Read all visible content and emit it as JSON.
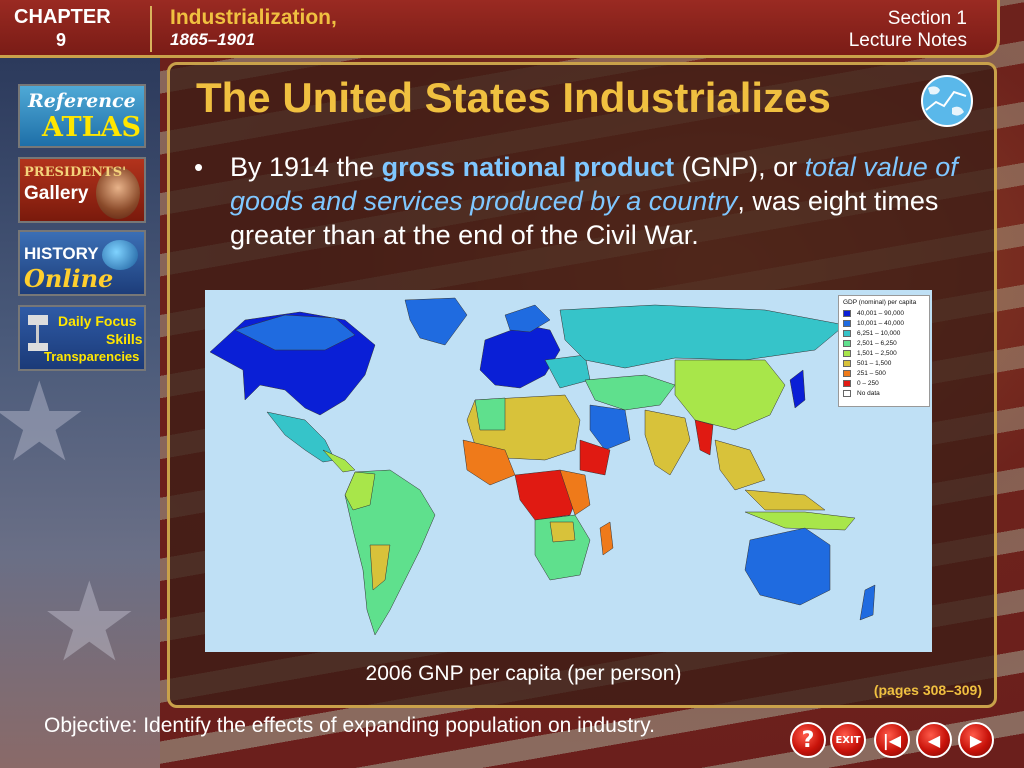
{
  "header": {
    "chapter_label": "CHAPTER",
    "chapter_number": "9",
    "chapter_title": "Industrialization,",
    "chapter_dates": "1865–1901",
    "section_label": "Section 1",
    "section_sub": "Lecture Notes"
  },
  "sidebar": {
    "atlas_line1": "Reference",
    "atlas_line2": "ATLAS",
    "presidents_line1": "PRESIDENTS'",
    "presidents_line2": "Gallery",
    "history_line1": "HISTORY",
    "history_line2": "Online",
    "focus_line1": "Daily Focus",
    "focus_line2": "Skills",
    "focus_line3": "Transparencies"
  },
  "main": {
    "title": "The United States Industrializes",
    "bullet_intro": "By 1914 the ",
    "bullet_term": "gross national product",
    "bullet_mid": " (GNP), or ",
    "bullet_definition": "total value of goods and services produced by a country",
    "bullet_end": ", was eight times greater than at the end of the Civil War.",
    "map_caption": "2006 GNP per capita (per person)",
    "pages_ref": "(pages 308–309)"
  },
  "legend": {
    "title": "GDP (nominal) per capita",
    "entries": [
      {
        "label": "40,001 – 90,000",
        "color": "#0a1fd6"
      },
      {
        "label": "10,001 – 40,000",
        "color": "#1f6be0"
      },
      {
        "label": "6,251 – 10,000",
        "color": "#36c4c9"
      },
      {
        "label": "2,501 – 6,250",
        "color": "#5fe08d"
      },
      {
        "label": "1,501 – 2,500",
        "color": "#a8e64a"
      },
      {
        "label": "501 – 1,500",
        "color": "#d8c23a"
      },
      {
        "label": "251 – 500",
        "color": "#ef7a1a"
      },
      {
        "label": "0 – 250",
        "color": "#e01a12"
      },
      {
        "label": "No data",
        "color": "#ffffff"
      }
    ]
  },
  "footer": {
    "objective": "Objective: Identify the effects of expanding population on industry."
  },
  "nav": {
    "help": "?",
    "exit": "EXIT",
    "first": "|◀",
    "prev": "◀",
    "next": "▶"
  }
}
